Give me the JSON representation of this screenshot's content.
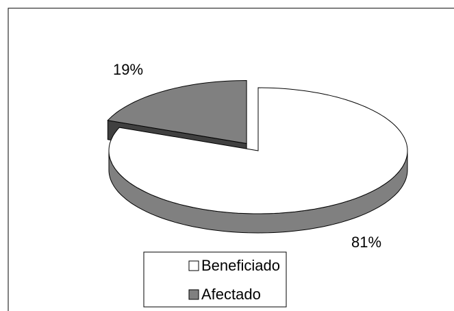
{
  "chart_data": {
    "type": "pie",
    "categories": [
      "Beneficiado",
      "Afectado"
    ],
    "values": [
      81,
      19
    ],
    "value_labels": [
      "81%",
      "19%"
    ],
    "colors": [
      "#ffffff",
      "#808080"
    ],
    "legend": "bottom"
  }
}
